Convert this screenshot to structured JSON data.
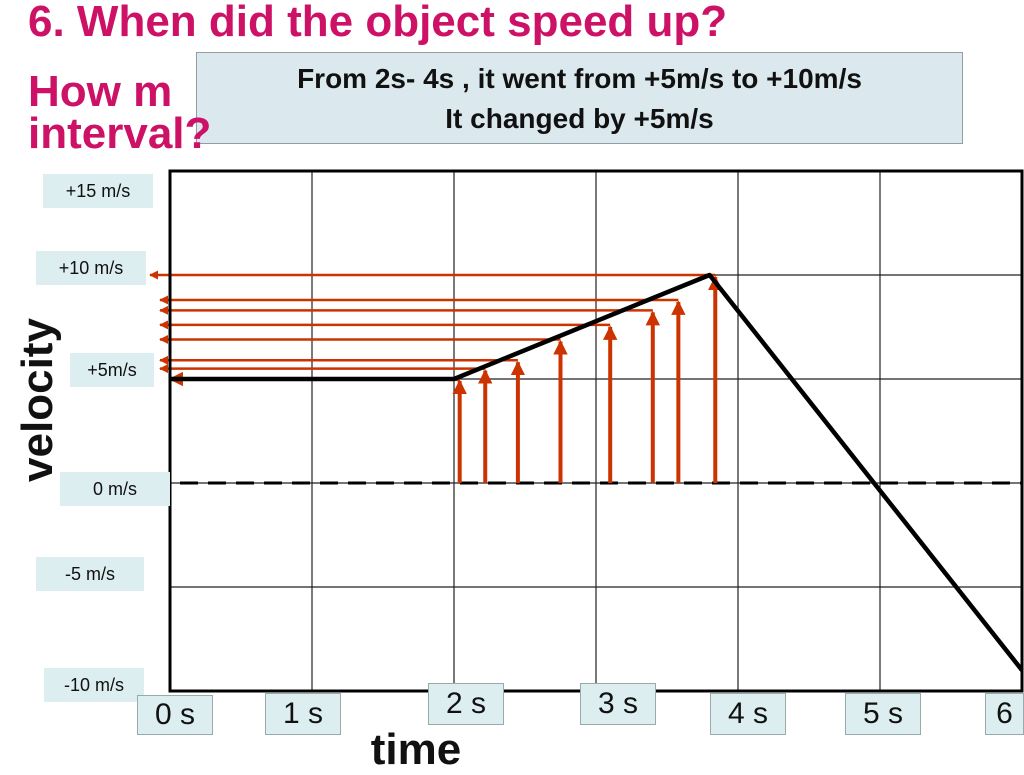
{
  "slide": {
    "title_line1": "6. When did the object speed up?",
    "title_line2": "How m",
    "title_line3": "interval?",
    "answer_line1": "From 2s- 4s , it went from +5m/s to +10m/s",
    "answer_line2": "It changed by +5m/s"
  },
  "colors": {
    "title": "#cc1166",
    "arrow": "#cc3300",
    "line": "#000000",
    "label_bg": "#ddeef0",
    "answer_bg": "#dbe9ef"
  },
  "chart_data": {
    "type": "line",
    "title": "",
    "xlabel": "time",
    "ylabel": "velocity",
    "x_ticks": [
      "0 s",
      "1 s",
      "2 s",
      "3 s",
      "4 s",
      "5 s",
      "6"
    ],
    "y_ticks": [
      "+15 m/s",
      "+10 m/s",
      "+5m/s",
      "0 m/s",
      "-5 m/s",
      "-10 m/s"
    ],
    "xlim": [
      0,
      6
    ],
    "ylim": [
      -10,
      15
    ],
    "grid": true,
    "series": [
      {
        "x": [
          0,
          2,
          3.8,
          6
        ],
        "y": [
          5,
          5,
          10,
          -9
        ]
      }
    ],
    "zero_line": "dashed",
    "arrows": [
      {
        "x": 2.04,
        "y": 5.0
      },
      {
        "x": 2.22,
        "y": 5.5
      },
      {
        "x": 2.45,
        "y": 5.9
      },
      {
        "x": 2.75,
        "y": 6.9
      },
      {
        "x": 3.1,
        "y": 7.6
      },
      {
        "x": 3.4,
        "y": 8.3
      },
      {
        "x": 3.58,
        "y": 8.8
      },
      {
        "x": 3.84,
        "y": 10.0
      }
    ]
  }
}
